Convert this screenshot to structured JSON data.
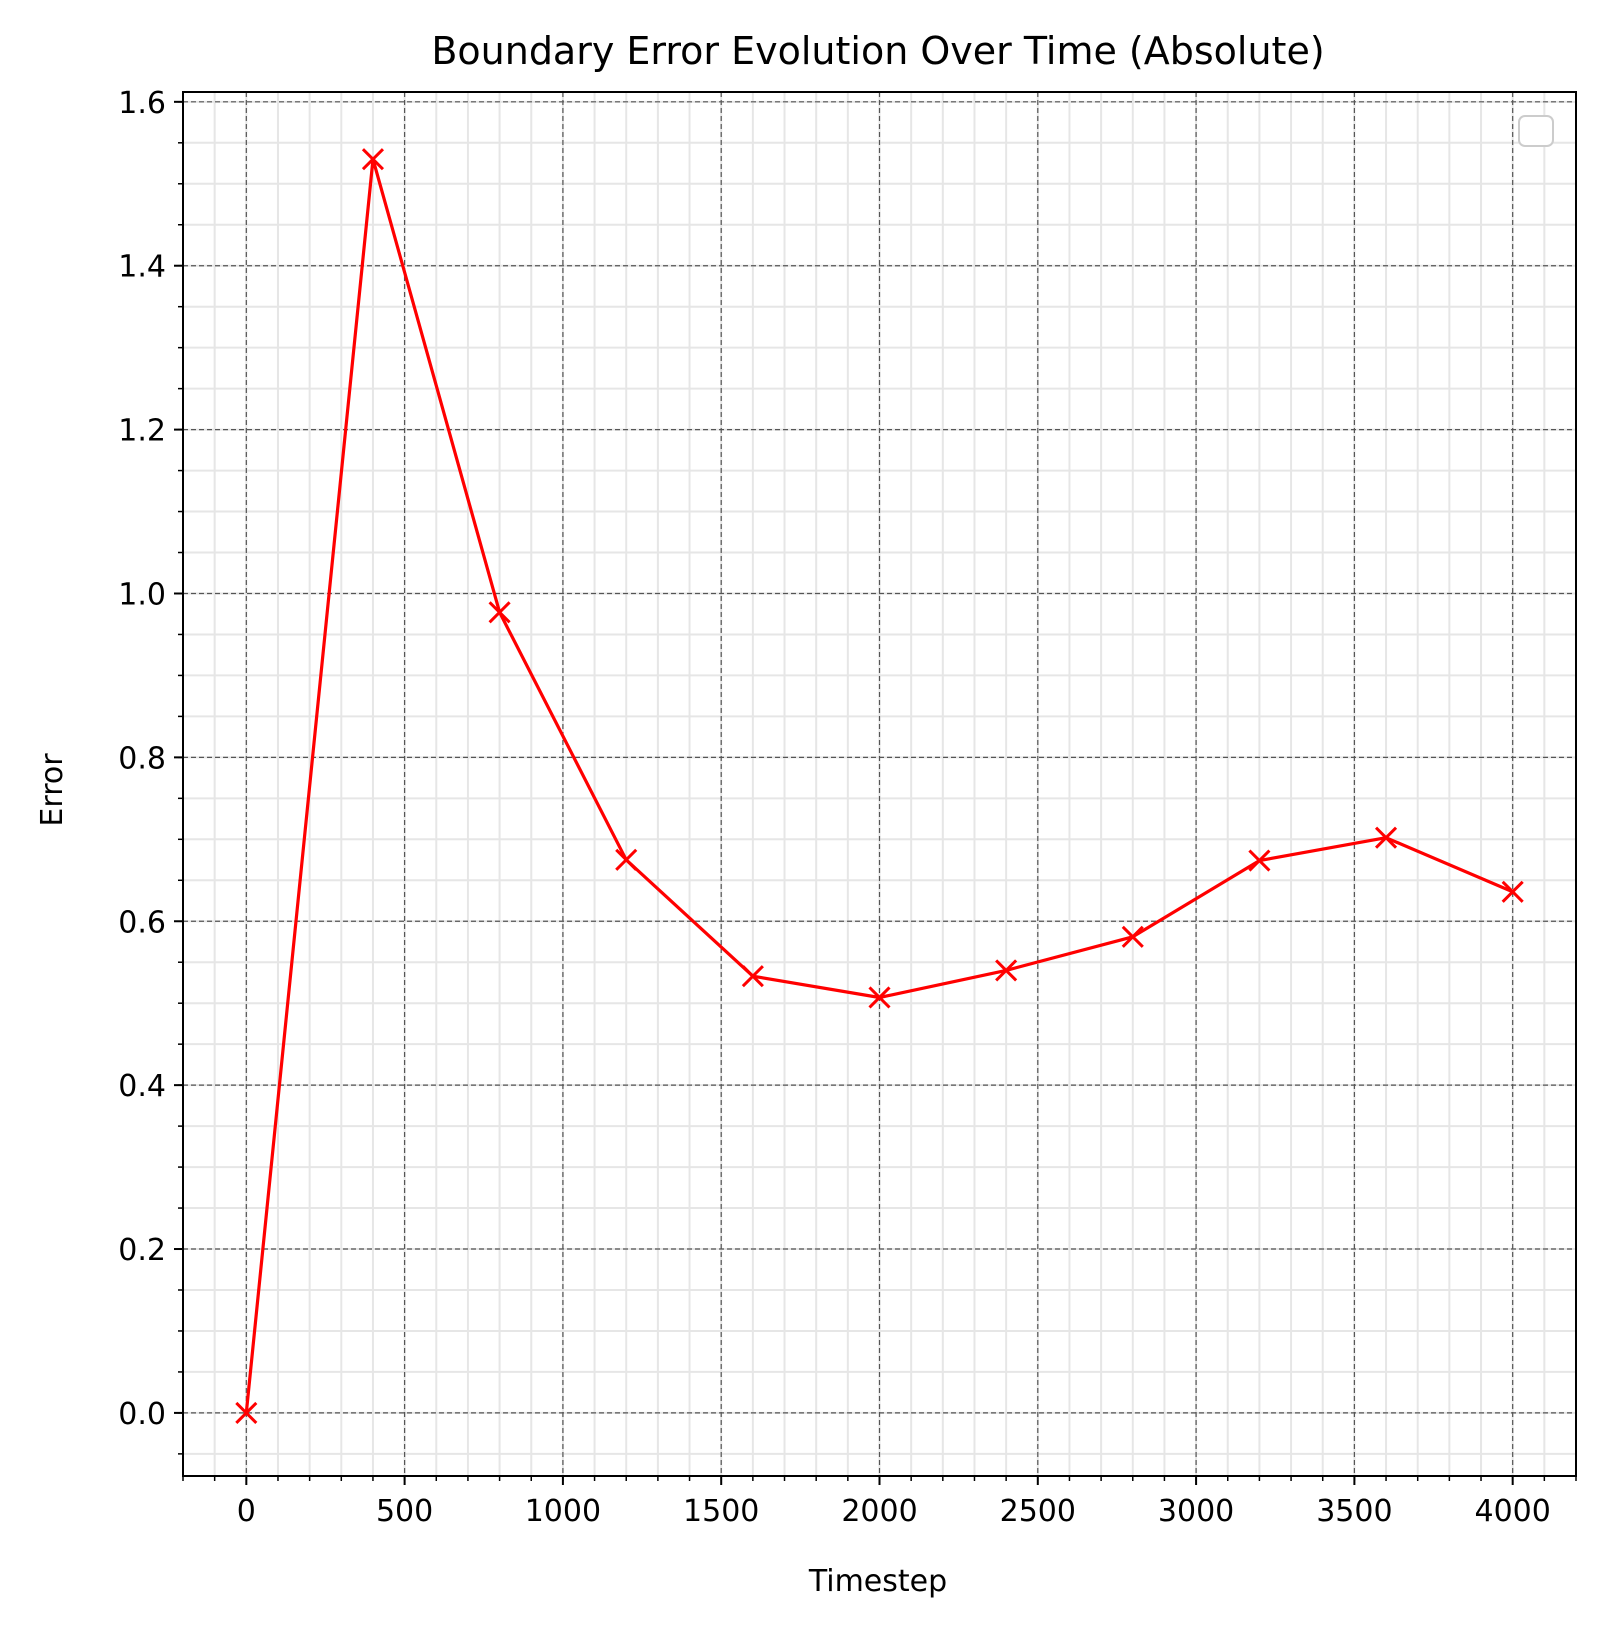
{
  "chart_data": {
    "type": "line",
    "title": "Boundary Error Evolution Over Time (Absolute)",
    "xlabel": "Timestep",
    "ylabel": "Error",
    "xlim": [
      -200,
      4200
    ],
    "ylim": [
      -0.077,
      1.612
    ],
    "x_ticks": [
      0,
      500,
      1000,
      1500,
      2000,
      2500,
      3000,
      3500,
      4000
    ],
    "x_tick_labels": [
      "0",
      "500",
      "1000",
      "1500",
      "2000",
      "2500",
      "3000",
      "3500",
      "4000"
    ],
    "y_ticks": [
      0.0,
      0.2,
      0.4,
      0.6,
      0.8,
      1.0,
      1.2,
      1.4,
      1.6
    ],
    "y_tick_labels": [
      "0.0",
      "0.2",
      "0.4",
      "0.6",
      "0.8",
      "1.0",
      "1.2",
      "1.4",
      "1.6"
    ],
    "x_minor_step": 100,
    "y_minor_step": 0.05,
    "grid": true,
    "legend": "top-right (empty)",
    "series": [
      {
        "color": "#ff0000",
        "marker": "x",
        "x": [
          0,
          400,
          800,
          1200,
          1600,
          2000,
          2400,
          2800,
          3200,
          3600,
          4000
        ],
        "values": [
          0.0,
          1.53,
          0.977,
          0.675,
          0.533,
          0.507,
          0.54,
          0.581,
          0.674,
          0.702,
          0.636
        ]
      }
    ]
  }
}
